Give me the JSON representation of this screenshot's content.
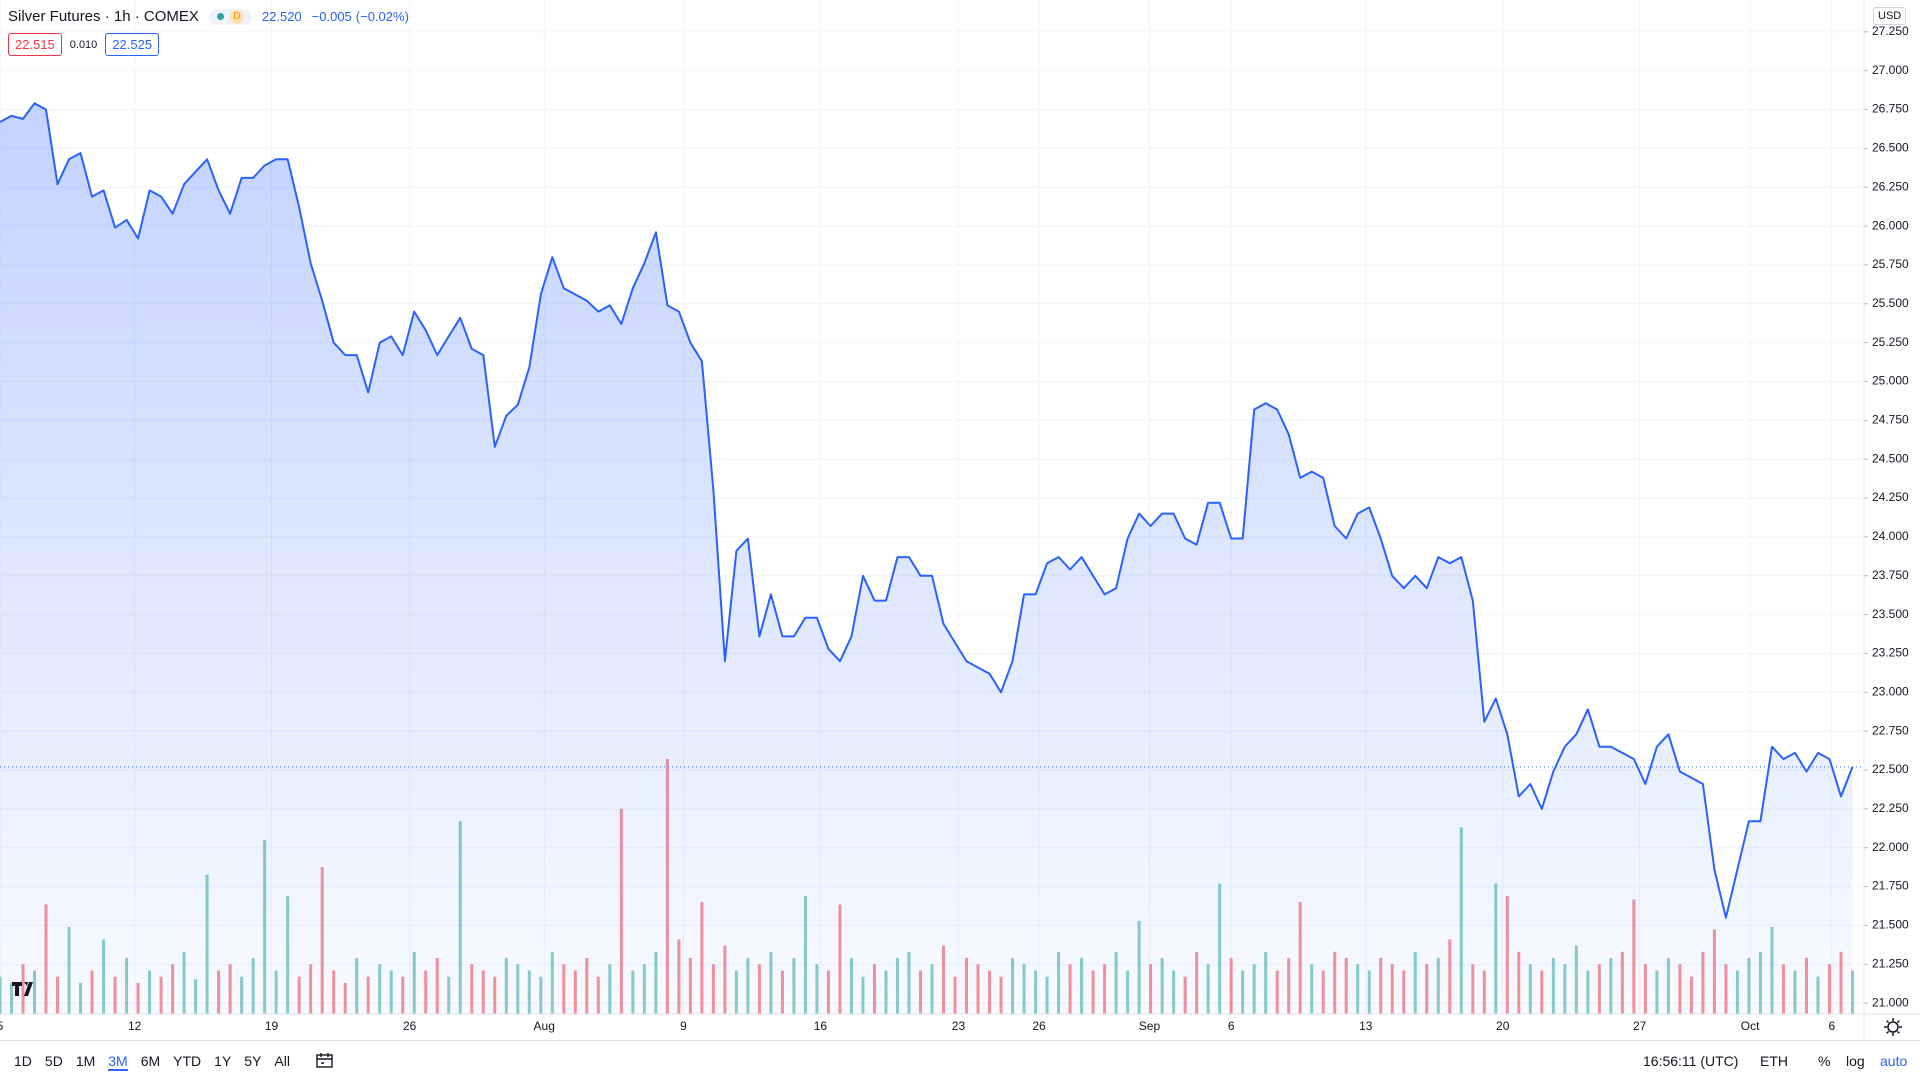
{
  "header": {
    "title": "Silver Futures · 1h · COMEX",
    "badge": "D",
    "last": "22.520",
    "change": "−0.005",
    "change_pct": "(−0.02%)",
    "bid": "22.515",
    "spread": "0.010",
    "ask": "22.525"
  },
  "chart_data": {
    "type": "area",
    "series": [
      {
        "color": "#2962ff",
        "values": [
          26.67,
          26.71,
          26.69,
          26.79,
          26.75,
          26.27,
          26.43,
          26.47,
          26.19,
          26.23,
          25.99,
          26.04,
          25.92,
          26.23,
          26.19,
          26.08,
          26.27,
          26.35,
          26.43,
          26.23,
          26.08,
          26.31,
          26.31,
          26.39,
          26.43,
          26.43,
          26.12,
          25.76,
          25.52,
          25.25,
          25.17,
          25.17,
          24.93,
          25.25,
          25.29,
          25.17,
          25.45,
          25.33,
          25.17,
          25.29,
          25.41,
          25.21,
          25.17,
          24.58,
          24.78,
          24.85,
          25.09,
          25.56,
          25.8,
          25.6,
          25.56,
          25.52,
          25.45,
          25.49,
          25.37,
          25.6,
          25.76,
          25.96,
          25.49,
          25.45,
          25.25,
          25.13,
          24.3,
          23.2,
          23.91,
          23.99,
          23.36,
          23.63,
          23.36,
          23.36,
          23.48,
          23.48,
          23.28,
          23.2,
          23.36,
          23.75,
          23.59,
          23.59,
          23.87,
          23.87,
          23.75,
          23.75,
          23.44,
          23.32,
          23.2,
          23.16,
          23.12,
          23.0,
          23.2,
          23.63,
          23.63,
          23.83,
          23.87,
          23.79,
          23.87,
          23.75,
          23.63,
          23.67,
          23.99,
          24.15,
          24.07,
          24.15,
          24.15,
          23.99,
          23.95,
          24.22,
          24.22,
          23.99,
          23.99,
          24.82,
          24.86,
          24.82,
          24.66,
          24.38,
          24.42,
          24.38,
          24.07,
          23.99,
          24.15,
          24.19,
          23.99,
          23.75,
          23.67,
          23.75,
          23.67,
          23.87,
          23.83,
          23.87,
          23.59,
          22.81,
          22.96,
          22.73,
          22.33,
          22.41,
          22.25,
          22.49,
          22.65,
          22.73,
          22.89,
          22.65,
          22.65,
          22.61,
          22.57,
          22.41,
          22.65,
          22.73,
          22.49,
          22.45,
          22.41,
          21.86,
          21.55,
          21.86,
          22.17,
          22.17,
          22.65,
          22.57,
          22.61,
          22.49,
          22.61,
          22.57,
          22.33,
          22.52
        ]
      }
    ],
    "volume": {
      "up_color": "rgba(38,166,154,0.55)",
      "down_color": "rgba(242,54,69,0.55)",
      "values": [
        30,
        25,
        40,
        35,
        88,
        30,
        70,
        25,
        35,
        60,
        30,
        45,
        25,
        35,
        30,
        40,
        50,
        28,
        112,
        35,
        40,
        30,
        45,
        140,
        35,
        95,
        30,
        40,
        118,
        35,
        25,
        45,
        30,
        40,
        35,
        30,
        50,
        35,
        45,
        30,
        155,
        40,
        35,
        30,
        45,
        40,
        35,
        30,
        50,
        40,
        35,
        45,
        30,
        40,
        165,
        35,
        40,
        50,
        205,
        60,
        45,
        90,
        40,
        55,
        35,
        45,
        40,
        50,
        35,
        45,
        95,
        40,
        35,
        88,
        45,
        30,
        40,
        35,
        45,
        50,
        35,
        40,
        55,
        30,
        45,
        40,
        35,
        30,
        45,
        40,
        35,
        30,
        50,
        40,
        45,
        35,
        40,
        50,
        35,
        75,
        40,
        45,
        35,
        30,
        50,
        40,
        105,
        45,
        35,
        40,
        50,
        35,
        45,
        90,
        40,
        35,
        50,
        45,
        40,
        35,
        45,
        40,
        35,
        50,
        40,
        45,
        60,
        150,
        40,
        35,
        105,
        95,
        50,
        40,
        35,
        45,
        40,
        55,
        35,
        40,
        45,
        50,
        92,
        40,
        35,
        45,
        40,
        30,
        50,
        68,
        40,
        35,
        45,
        50,
        70,
        40,
        35,
        45,
        30,
        40,
        50,
        35
      ]
    },
    "xlim": [
      0,
      162
    ],
    "xticks": [
      {
        "value": 0,
        "label": "5"
      },
      {
        "value": 11.7,
        "label": "12"
      },
      {
        "value": 23.6,
        "label": "19"
      },
      {
        "value": 35.6,
        "label": "26"
      },
      {
        "value": 47.3,
        "label": "Aug"
      },
      {
        "value": 59.4,
        "label": "9"
      },
      {
        "value": 71.3,
        "label": "16"
      },
      {
        "value": 83.3,
        "label": "23"
      },
      {
        "value": 90.3,
        "label": "26"
      },
      {
        "value": 99.9,
        "label": "Sep"
      },
      {
        "value": 107,
        "label": "6"
      },
      {
        "value": 118.7,
        "label": "13"
      },
      {
        "value": 130.6,
        "label": "20"
      },
      {
        "value": 142.5,
        "label": "27"
      },
      {
        "value": 152.1,
        "label": "Oct"
      },
      {
        "value": 159.2,
        "label": "6"
      }
    ],
    "ylim": [
      20.93,
      27.455
    ],
    "yticks": [
      {
        "value": 21,
        "label": "21.000"
      },
      {
        "value": 21.25,
        "label": "21.250"
      },
      {
        "value": 21.5,
        "label": "21.500"
      },
      {
        "value": 21.75,
        "label": "21.750"
      },
      {
        "value": 22,
        "label": "22.000"
      },
      {
        "value": 22.25,
        "label": "22.250"
      },
      {
        "value": 22.5,
        "label": "22.500"
      },
      {
        "value": 22.75,
        "label": "22.750"
      },
      {
        "value": 23,
        "label": "23.000"
      },
      {
        "value": 23.25,
        "label": "23.250"
      },
      {
        "value": 23.5,
        "label": "23.500"
      },
      {
        "value": 23.75,
        "label": "23.750"
      },
      {
        "value": 24,
        "label": "24.000"
      },
      {
        "value": 24.25,
        "label": "24.250"
      },
      {
        "value": 24.5,
        "label": "24.500"
      },
      {
        "value": 24.75,
        "label": "24.750"
      },
      {
        "value": 25,
        "label": "25.000"
      },
      {
        "value": 25.25,
        "label": "25.250"
      },
      {
        "value": 25.5,
        "label": "25.500"
      },
      {
        "value": 25.75,
        "label": "25.750"
      },
      {
        "value": 26,
        "label": "26.000"
      },
      {
        "value": 26.25,
        "label": "26.250"
      },
      {
        "value": 26.5,
        "label": "26.500"
      },
      {
        "value": 26.75,
        "label": "26.750"
      },
      {
        "value": 27,
        "label": "27.000"
      },
      {
        "value": 27.25,
        "label": "27.250"
      }
    ],
    "grid": true,
    "currency": "USD"
  },
  "toolbar": {
    "ranges": [
      "1D",
      "5D",
      "1M",
      "3M",
      "6M",
      "YTD",
      "1Y",
      "5Y",
      "All"
    ],
    "active_range": 3,
    "time": "16:56:11 (UTC)",
    "session": "ETH",
    "percent": "%",
    "log": "log",
    "auto": "auto"
  }
}
